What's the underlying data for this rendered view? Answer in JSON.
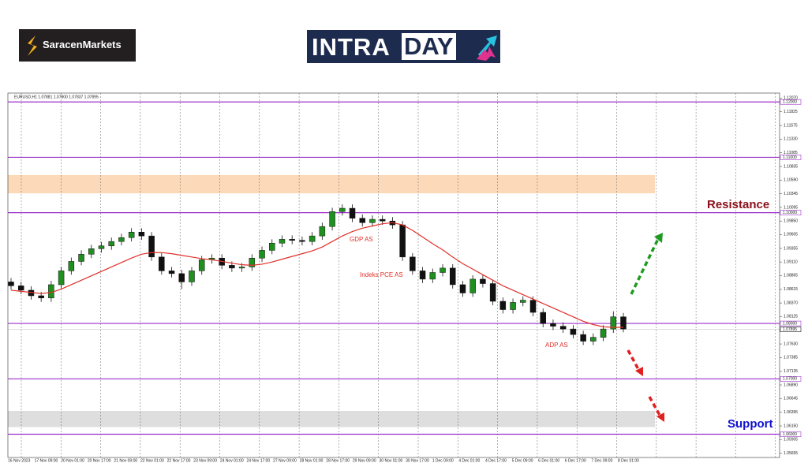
{
  "logo": "SaracenMarkets",
  "banner": {
    "left": "INTRA",
    "right": "DAY"
  },
  "chart_data": {
    "type": "candlestick",
    "header": "EURUSD,H1 1.07881 1.07900 1.07837 1.07895",
    "open": [
      1.0875,
      1.0868,
      1.086,
      1.085,
      1.0846,
      1.087,
      1.0895,
      1.0912,
      1.0925,
      1.0935,
      1.094,
      1.0948,
      1.0955,
      1.0965,
      1.0958,
      1.092,
      1.0895,
      1.089,
      1.0875,
      1.0895,
      1.0915,
      1.0918,
      1.0905,
      1.09,
      1.0902,
      1.0918,
      1.0932,
      1.0945,
      1.0952,
      1.095,
      1.0948,
      1.0958,
      1.0975,
      1.1002,
      1.1008,
      1.099,
      1.0982,
      1.0988,
      1.0985,
      1.0978,
      1.092,
      1.0895,
      1.088,
      1.0892,
      1.09,
      1.087,
      1.0855,
      1.088,
      1.0872,
      1.084,
      1.0825,
      1.0838,
      1.0842,
      1.082,
      1.08,
      1.0795,
      1.079,
      1.078,
      1.0768,
      1.0775,
      1.079,
      1.0812
    ],
    "high": [
      1.0882,
      1.0875,
      1.0867,
      1.0857,
      1.0877,
      1.0902,
      1.0919,
      1.0932,
      1.0942,
      1.0947,
      1.0955,
      1.0962,
      1.0972,
      1.0972,
      1.0965,
      1.0927,
      1.0902,
      1.0897,
      1.0902,
      1.0922,
      1.0925,
      1.0925,
      1.0912,
      1.0909,
      1.0925,
      1.0939,
      1.0952,
      1.0959,
      1.0959,
      1.0957,
      1.0965,
      1.0982,
      1.1009,
      1.1015,
      1.1015,
      1.0997,
      1.0995,
      1.0995,
      1.0992,
      1.0985,
      1.0927,
      1.0902,
      1.0899,
      1.0907,
      1.0907,
      1.0877,
      1.0887,
      1.0887,
      1.0879,
      1.0847,
      1.0845,
      1.0849,
      1.0849,
      1.0827,
      1.0807,
      1.0802,
      1.0797,
      1.0787,
      1.0782,
      1.0797,
      1.0822,
      1.0819
    ],
    "low": [
      1.0861,
      1.0853,
      1.0843,
      1.0839,
      1.0839,
      1.0863,
      1.0888,
      1.0905,
      1.0918,
      1.0928,
      1.0933,
      1.0941,
      1.0948,
      1.0951,
      1.0913,
      1.0888,
      1.0883,
      1.0862,
      1.0868,
      1.0888,
      1.0908,
      1.0898,
      1.0893,
      1.0893,
      1.0895,
      1.0911,
      1.0925,
      1.0938,
      1.0943,
      1.0941,
      1.0941,
      1.0951,
      1.0968,
      1.0995,
      1.0983,
      1.0975,
      1.0975,
      1.0978,
      1.0971,
      1.0913,
      1.0888,
      1.0873,
      1.0873,
      1.0885,
      1.0863,
      1.0848,
      1.0848,
      1.0865,
      1.0833,
      1.0818,
      1.0818,
      1.0831,
      1.0813,
      1.0793,
      1.0788,
      1.0783,
      1.0773,
      1.0761,
      1.0761,
      1.0768,
      1.0783,
      1.0784
    ],
    "close": [
      1.0868,
      1.086,
      1.085,
      1.0846,
      1.087,
      1.0895,
      1.0912,
      1.0925,
      1.0935,
      1.094,
      1.0948,
      1.0955,
      1.0965,
      1.0958,
      1.092,
      1.0895,
      1.089,
      1.0875,
      1.0895,
      1.0915,
      1.0918,
      1.0905,
      1.09,
      1.0902,
      1.0918,
      1.0932,
      1.0945,
      1.0952,
      1.095,
      1.0948,
      1.0958,
      1.0975,
      1.1002,
      1.1008,
      1.099,
      1.0982,
      1.0988,
      1.0985,
      1.0978,
      1.092,
      1.0895,
      1.088,
      1.0892,
      1.09,
      1.087,
      1.0855,
      1.088,
      1.0872,
      1.084,
      1.0825,
      1.0838,
      1.0842,
      1.082,
      1.08,
      1.0795,
      1.079,
      1.078,
      1.0768,
      1.0775,
      1.079,
      1.0812,
      1.079
    ],
    "up_color": "#1f8f1f",
    "down_color": "#111111",
    "moving_average": {
      "color": "#e0302a",
      "values": [
        1.086,
        1.0858,
        1.0856,
        1.0854,
        1.0856,
        1.0862,
        1.087,
        1.0878,
        1.0886,
        1.0894,
        1.0902,
        1.091,
        1.0918,
        1.0925,
        1.0928,
        1.0928,
        1.0926,
        1.0923,
        1.092,
        1.0917,
        1.0915,
        1.0912,
        1.0909,
        1.0906,
        1.0905,
        1.0907,
        1.0911,
        1.0916,
        1.0921,
        1.0926,
        1.0931,
        1.0938,
        1.0948,
        1.0958,
        1.0966,
        1.0972,
        1.0976,
        1.098,
        1.0982,
        1.0978,
        1.0968,
        1.0956,
        1.0944,
        1.0933,
        1.092,
        1.0908,
        1.0898,
        1.0888,
        1.0878,
        1.0868,
        1.086,
        1.0852,
        1.0844,
        1.0836,
        1.0828,
        1.082,
        1.0812,
        1.0804,
        1.0798,
        1.0794,
        1.0793,
        1.0793
      ]
    },
    "x_labels": [
      "16 Nov 2023",
      "17 Nov 09:00",
      "20 Nov 01:00",
      "20 Nov 17:00",
      "21 Nov 09:00",
      "22 Nov 01:00",
      "22 Nov 17:00",
      "23 Nov 09:00",
      "24 Nov 01:00",
      "24 Nov 17:00",
      "27 Nov 09:00",
      "28 Nov 01:00",
      "28 Nov 17:00",
      "29 Nov 09:00",
      "30 Nov 01:00",
      "30 Nov 17:00",
      "1 Dec 09:00",
      "4 Dec 01:00",
      "4 Dec 17:00",
      "5 Dec 09:00",
      "6 Dec 01:00",
      "6 Dec 17:00",
      "7 Dec 09:00",
      "8 Dec 01:00"
    ],
    "ylim": [
      1.0558,
      1.1216
    ],
    "yticks": [
      {
        "value": 1.1207,
        "label": "1.12070"
      },
      {
        "value": 1.11825,
        "label": "1.11825"
      },
      {
        "value": 1.11575,
        "label": "1.11575"
      },
      {
        "value": 1.1133,
        "label": "1.11330"
      },
      {
        "value": 1.11085,
        "label": "1.11085"
      },
      {
        "value": 1.10835,
        "label": "1.10835"
      },
      {
        "value": 1.1059,
        "label": "1.10590"
      },
      {
        "value": 1.10345,
        "label": "1.10345"
      },
      {
        "value": 1.10095,
        "label": "1.10095"
      },
      {
        "value": 1.0985,
        "label": "1.09850"
      },
      {
        "value": 1.09605,
        "label": "1.09605"
      },
      {
        "value": 1.09355,
        "label": "1.09355"
      },
      {
        "value": 1.0911,
        "label": "1.09110"
      },
      {
        "value": 1.08865,
        "label": "1.08865"
      },
      {
        "value": 1.08615,
        "label": "1.08615"
      },
      {
        "value": 1.0837,
        "label": "1.08370"
      },
      {
        "value": 1.08125,
        "label": "1.08125"
      },
      {
        "value": 1.0763,
        "label": "1.07630"
      },
      {
        "value": 1.07385,
        "label": "1.07385"
      },
      {
        "value": 1.07135,
        "label": "1.07135"
      },
      {
        "value": 1.0689,
        "label": "1.06890"
      },
      {
        "value": 1.06645,
        "label": "1.06645"
      },
      {
        "value": 1.06395,
        "label": "1.06395"
      },
      {
        "value": 1.0615,
        "label": "1.06150"
      },
      {
        "value": 1.05905,
        "label": "1.05905"
      },
      {
        "value": 1.05655,
        "label": "1.05655"
      }
    ],
    "levels": [
      {
        "value": 1.12,
        "label": "1.12000"
      },
      {
        "value": 1.11,
        "label": "1.11000"
      },
      {
        "value": 1.1,
        "label": "1.10000"
      },
      {
        "value": 1.08,
        "label": "1.08000"
      },
      {
        "value": 1.07,
        "label": "1.07000"
      },
      {
        "value": 1.06,
        "label": "1.06000"
      }
    ],
    "level_color": "#9b30c8",
    "current_price": {
      "value": 1.07895,
      "label": "1.07895"
    },
    "zones": [
      {
        "from": 1.1035,
        "to": 1.1068,
        "color": "#fcd9b8"
      },
      {
        "from": 1.0613,
        "to": 1.0642,
        "color": "#dedede"
      }
    ],
    "annotations": {
      "gdp": "GDP AS",
      "pce": "Indeks PCE AS",
      "adp": "ADP AS",
      "resistance": "Resistance",
      "support": "Support"
    }
  }
}
